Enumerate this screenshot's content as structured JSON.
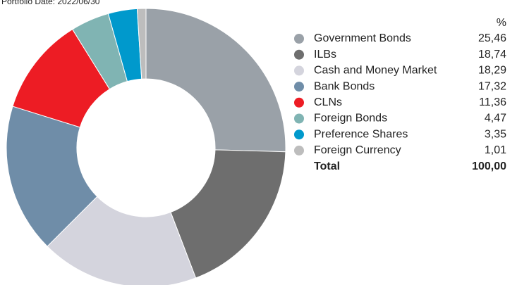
{
  "chart_data": {
    "type": "donut",
    "title": "Portfolio Date: 2022/06/30",
    "unit_label": "%",
    "categories": [
      "Government Bonds",
      "ILBs",
      "Cash and Money Market",
      "Bank Bonds",
      "CLNs",
      "Foreign Bonds",
      "Preference Shares",
      "Foreign Currency"
    ],
    "values": [
      25.46,
      18.74,
      18.29,
      17.32,
      11.36,
      4.47,
      3.35,
      1.01
    ],
    "value_labels": [
      "25,46",
      "18,74",
      "18,29",
      "17,32",
      "11,36",
      "4,47",
      "3,35",
      "1,01"
    ],
    "colors": [
      "#9aa1a8",
      "#6e6e6e",
      "#d4d4dd",
      "#6f8da8",
      "#ed1c24",
      "#80b4b3",
      "#0099cc",
      "#bdbdbd"
    ],
    "total_label": "Total",
    "total_value_label": "100,00"
  }
}
